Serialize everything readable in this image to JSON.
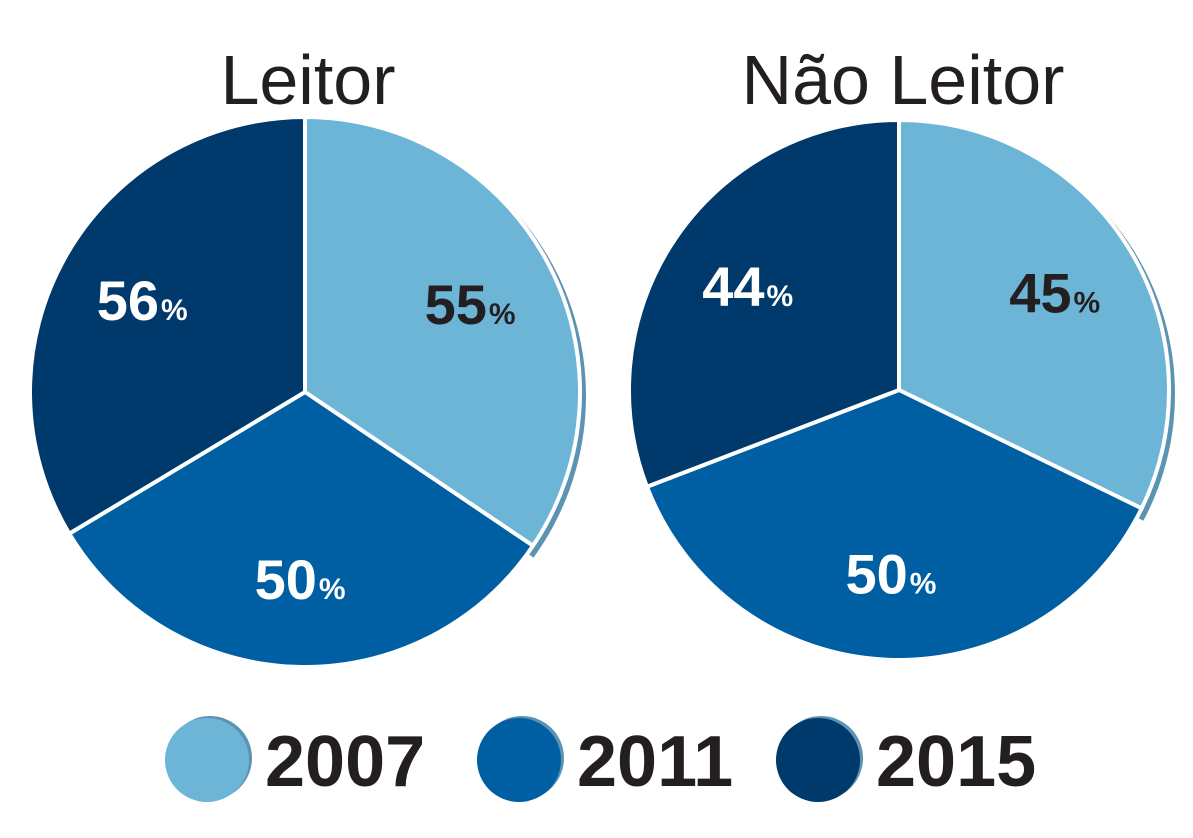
{
  "legend": {
    "items": [
      {
        "label": "2007",
        "color": "#6db5d7"
      },
      {
        "label": "2011",
        "color": "#005fa3"
      },
      {
        "label": "2015",
        "color": "#00396b"
      }
    ]
  },
  "chart_data": [
    {
      "type": "pie",
      "title": "Leitor",
      "categories": [
        "2007",
        "2011",
        "2015"
      ],
      "values": [
        55,
        50,
        56
      ],
      "value_suffix": "%",
      "label_colors": [
        "#231f20",
        "#ffffff",
        "#ffffff"
      ],
      "legend": "bottom"
    },
    {
      "type": "pie",
      "title": "Não Leitor",
      "categories": [
        "2007",
        "2011",
        "2015"
      ],
      "values": [
        45,
        50,
        44
      ],
      "value_suffix": "%",
      "label_colors": [
        "#231f20",
        "#ffffff",
        "#ffffff"
      ],
      "legend": "bottom"
    }
  ]
}
